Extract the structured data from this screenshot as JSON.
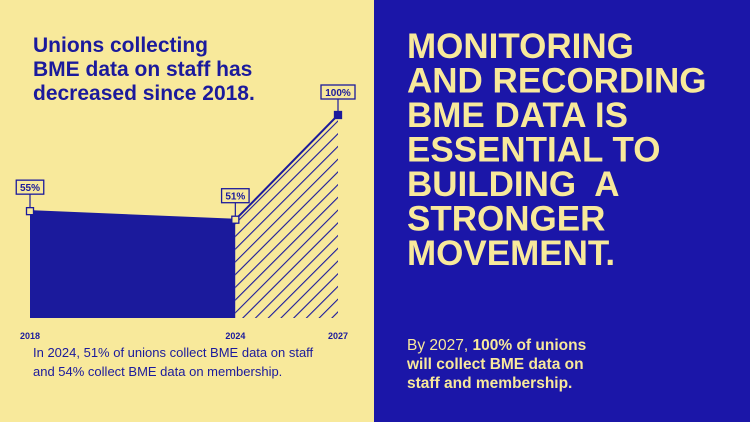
{
  "chart_data": {
    "type": "area",
    "title_lines": [
      "Unions collecting",
      "BME data on staff has",
      "decreased since 2018."
    ],
    "x": [
      2018,
      2024,
      2027
    ],
    "values": [
      55,
      51,
      100
    ],
    "value_labels": [
      "55%",
      "51%",
      "100%"
    ],
    "segment_fills": [
      "solid",
      "hatch"
    ],
    "color": "#1b1a9c",
    "xlim": [
      2018,
      2027
    ],
    "xticks": [
      2018,
      2024,
      2027
    ],
    "ylim": [
      5,
      100
    ],
    "note_lines": [
      "In 2024, 51% of unions collect BME data on staff",
      "and 54% collect BME data on membership."
    ]
  },
  "headline_lines": [
    "MONITORING",
    "AND RECORDING",
    "BME DATA IS",
    "ESSENTIAL TO",
    "BUILDING  A",
    "STRONGER",
    "MOVEMENT."
  ],
  "callout_lines": [
    [
      {
        "text": "By 2027, ",
        "bold": false
      },
      {
        "text": "100% of unions",
        "bold": true
      }
    ],
    [
      {
        "text": "will collect BME data on",
        "bold": true
      }
    ],
    [
      {
        "text": "staff and membership.",
        "bold": true
      }
    ]
  ]
}
